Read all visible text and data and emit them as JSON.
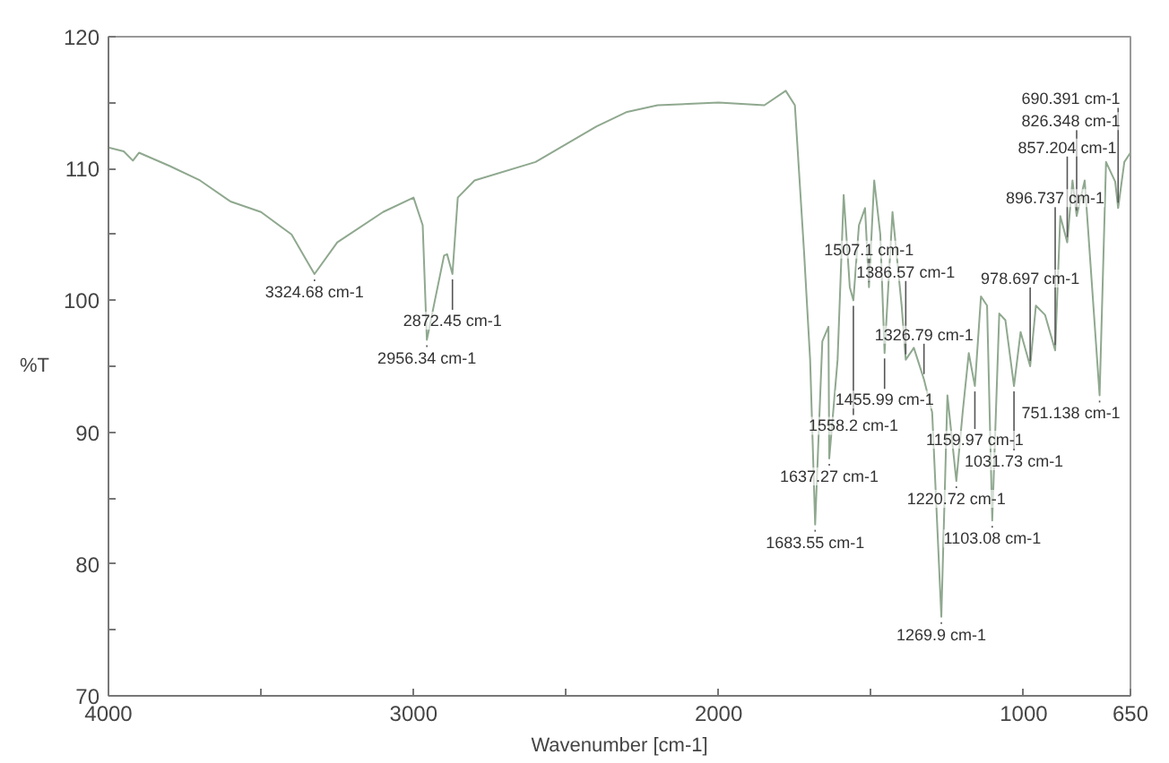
{
  "chart_data": {
    "type": "line",
    "xlabel": "Wavenumber [cm-1]",
    "ylabel": "%T",
    "xlim": [
      4000,
      650
    ],
    "ylim": [
      70,
      120
    ],
    "xticks": [
      4000,
      {
        "value": 3500,
        "label": null
      },
      3000,
      {
        "value": 2500,
        "label": null
      },
      2000,
      {
        "value": 1500,
        "label": null
      },
      1000,
      650
    ],
    "yticks": [
      70,
      {
        "value": 75,
        "label": null
      },
      80,
      {
        "value": 85,
        "label": null
      },
      90,
      {
        "value": 95,
        "label": null
      },
      100,
      {
        "value": 105,
        "label": null
      },
      110,
      {
        "value": 115,
        "label": null
      },
      120
    ],
    "grid": false,
    "marker": "none",
    "line_style": "solid",
    "series": [
      {
        "color": "#8fa88f",
        "x": [
          4000,
          3950,
          3920,
          3900,
          3800,
          3700,
          3600,
          3500,
          3400,
          3350,
          3324.68,
          3250,
          3100,
          3000,
          2970,
          2956.34,
          2930,
          2900,
          2890,
          2872.45,
          2855,
          2800,
          2600,
          2400,
          2300,
          2200,
          2000,
          1850,
          1780,
          1750,
          1720,
          1700,
          1683.55,
          1660,
          1640,
          1637.27,
          1610,
          1590,
          1570,
          1558.2,
          1540,
          1520,
          1507.1,
          1490,
          1470,
          1455.99,
          1430,
          1400,
          1386.57,
          1360,
          1326.79,
          1300,
          1269.9,
          1250,
          1220.72,
          1200,
          1180,
          1159.97,
          1140,
          1120,
          1103.08,
          1080,
          1060,
          1031.73,
          1010,
          978.697,
          960,
          930,
          896.737,
          880,
          857.204,
          840,
          826.348,
          800,
          751.138,
          730,
          700,
          690.391,
          670,
          650
        ],
        "values": [
          111.6,
          111.3,
          110.6,
          111.2,
          110.2,
          109.1,
          107.5,
          106.7,
          105,
          103,
          102,
          104.4,
          106.7,
          107.8,
          105.7,
          97,
          100,
          103.4,
          103.5,
          102,
          107.8,
          109.1,
          110.5,
          113.2,
          114.3,
          114.8,
          115,
          114.8,
          115.9,
          114.8,
          103.7,
          95.5,
          83,
          96.9,
          98,
          88,
          95.5,
          108,
          101,
          100,
          105.7,
          107,
          101,
          109.1,
          105,
          96,
          106.7,
          99.6,
          95.5,
          96.4,
          94,
          91.5,
          76,
          92.8,
          86.3,
          91.5,
          96,
          93.5,
          100.3,
          99.6,
          83.3,
          99,
          98.5,
          93.5,
          97.6,
          95,
          99.6,
          98.9,
          96.2,
          106.4,
          104.4,
          109.1,
          106.4,
          109.1,
          92.8,
          110.5,
          109,
          107,
          110.5,
          111.2
        ]
      }
    ],
    "annotations": [
      {
        "text": "3324.68 cm-1",
        "x": 3324.68,
        "y": 102
      },
      {
        "text": "2956.34 cm-1",
        "x": 2956.34,
        "y": 97
      },
      {
        "text": "2872.45 cm-1",
        "x": 2872.45,
        "y": 102
      },
      {
        "text": "1683.55 cm-1",
        "x": 1683.55,
        "y": 83
      },
      {
        "text": "1637.27 cm-1",
        "x": 1637.27,
        "y": 88
      },
      {
        "text": "1558.2 cm-1",
        "x": 1558.2,
        "y": 100
      },
      {
        "text": "1507.1 cm-1",
        "x": 1507.1,
        "y": 101
      },
      {
        "text": "1455.99 cm-1",
        "x": 1455.99,
        "y": 96
      },
      {
        "text": "1386.57 cm-1",
        "x": 1386.57,
        "y": 95.5
      },
      {
        "text": "1326.79 cm-1",
        "x": 1326.79,
        "y": 94
      },
      {
        "text": "1269.9 cm-1",
        "x": 1269.9,
        "y": 76
      },
      {
        "text": "1220.72 cm-1",
        "x": 1220.72,
        "y": 86.3
      },
      {
        "text": "1159.97 cm-1",
        "x": 1159.97,
        "y": 93.5
      },
      {
        "text": "1103.08 cm-1",
        "x": 1103.08,
        "y": 83.3
      },
      {
        "text": "1031.73 cm-1",
        "x": 1031.73,
        "y": 93.5
      },
      {
        "text": "978.697 cm-1",
        "x": 978.697,
        "y": 95
      },
      {
        "text": "896.737 cm-1",
        "x": 896.737,
        "y": 96.2
      },
      {
        "text": "857.204 cm-1",
        "x": 857.204,
        "y": 104.4
      },
      {
        "text": "826.348 cm-1",
        "x": 826.348,
        "y": 106.4
      },
      {
        "text": "751.138 cm-1",
        "x": 751.138,
        "y": 92.8
      },
      {
        "text": "690.391 cm-1",
        "x": 690.391,
        "y": 107
      }
    ]
  }
}
